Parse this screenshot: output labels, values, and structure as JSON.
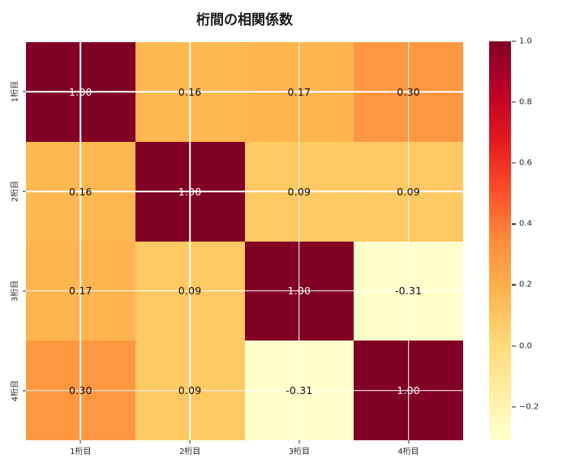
{
  "chart_data": {
    "type": "heatmap",
    "title": "桁間の相関係数",
    "categories": [
      "1桁目",
      "2桁目",
      "3桁目",
      "4桁目"
    ],
    "x_tick_labels": [
      "1桁目",
      "2桁目",
      "3桁目",
      "4桁目"
    ],
    "y_tick_labels": [
      "1桁目",
      "2桁目",
      "3桁目",
      "4桁目"
    ],
    "matrix": [
      [
        1.0,
        0.16,
        0.17,
        0.3
      ],
      [
        0.16,
        1.0,
        0.09,
        0.09
      ],
      [
        0.17,
        0.09,
        1.0,
        -0.31
      ],
      [
        0.3,
        0.09,
        -0.31,
        1.0
      ]
    ],
    "annotation_decimals": 2,
    "vmin": -0.31,
    "vmax": 1.0,
    "colormap": "YlOrRd",
    "colormap_stops": [
      "#ffffcc",
      "#ffeda0",
      "#fed976",
      "#feb24c",
      "#fd8d3c",
      "#fc4e2a",
      "#e31a1c",
      "#bd0026",
      "#800026"
    ],
    "colorbar_ticks": [
      1.0,
      0.8,
      0.6,
      0.4,
      0.2,
      0.0,
      -0.2
    ],
    "colorbar_tick_labels": [
      "1.0",
      "0.8",
      "0.6",
      "0.4",
      "0.2",
      "0.0",
      "−0.2"
    ],
    "grid": true,
    "grid_color": "#ffffff",
    "legend_position": "right-colorbar",
    "annotation_text_dark": "#111111",
    "annotation_text_light": "#ffffff"
  }
}
